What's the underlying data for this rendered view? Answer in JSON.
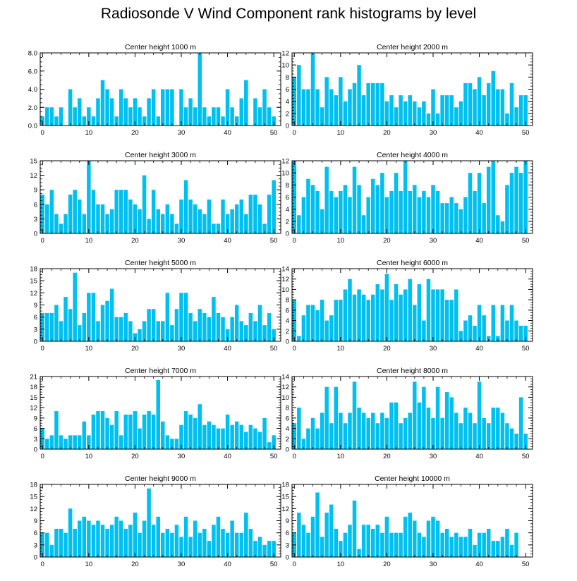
{
  "title": "Radiosonde V Wind Component rank histograms by level",
  "bar_color": "#00c0f0",
  "chart_data": [
    {
      "type": "bar",
      "title": "Center height 1000 m",
      "xlabel": "",
      "ylabel": "",
      "xlim": [
        -0.5,
        51.5
      ],
      "ylim": [
        0,
        8
      ],
      "yticks": [
        0,
        2,
        4,
        6,
        8
      ],
      "ytick_labels": [
        "0.0",
        "2.0",
        "4.0",
        "6.0",
        "8.0"
      ],
      "xticks": [
        0,
        10,
        20,
        30,
        40,
        50
      ],
      "values": [
        1,
        2,
        2,
        1,
        2,
        0,
        4,
        2,
        3,
        1,
        2,
        1,
        3,
        5,
        4,
        3,
        1,
        4,
        3,
        2,
        3,
        2,
        1,
        3,
        4,
        1,
        4,
        4,
        4,
        0,
        4,
        2,
        3,
        2,
        8,
        2,
        1,
        2,
        2,
        1,
        4,
        2,
        1,
        3,
        5,
        0,
        3,
        2,
        4,
        2,
        1
      ]
    },
    {
      "type": "bar",
      "title": "Center height 2000 m",
      "xlabel": "",
      "ylabel": "",
      "xlim": [
        -0.5,
        51.5
      ],
      "ylim": [
        0,
        12
      ],
      "yticks": [
        0,
        2,
        4,
        6,
        8,
        10,
        12
      ],
      "ytick_labels": [
        "0",
        "2",
        "4",
        "6",
        "8",
        "10",
        "12"
      ],
      "xticks": [
        0,
        10,
        20,
        30,
        40,
        50
      ],
      "values": [
        8,
        10,
        6,
        6,
        12,
        6,
        3,
        8,
        6,
        5,
        8,
        4,
        6,
        7,
        10,
        5,
        7,
        7,
        7,
        7,
        4,
        5,
        3,
        5,
        4,
        5,
        4,
        3,
        4,
        2,
        6,
        2,
        5,
        5,
        5,
        3,
        4,
        7,
        7,
        6,
        8,
        5,
        7,
        9,
        6,
        6,
        2,
        7,
        3,
        5,
        5
      ]
    },
    {
      "type": "bar",
      "title": "Center height 3000 m",
      "xlabel": "",
      "ylabel": "",
      "xlim": [
        -0.5,
        51.5
      ],
      "ylim": [
        0,
        15
      ],
      "yticks": [
        0,
        3,
        6,
        9,
        12,
        15
      ],
      "ytick_labels": [
        "0",
        "3",
        "6",
        "9",
        "12",
        "15"
      ],
      "xticks": [
        0,
        10,
        20,
        30,
        40,
        50
      ],
      "values": [
        8,
        6,
        9,
        4,
        2,
        4,
        8,
        9,
        7,
        4,
        15,
        9,
        6,
        6,
        4,
        5,
        9,
        9,
        9,
        7,
        6,
        5,
        12,
        3,
        9,
        5,
        4,
        6,
        4,
        2,
        7,
        11,
        7,
        6,
        5,
        4,
        7,
        2,
        2,
        7,
        4,
        5,
        6,
        7,
        4,
        8,
        8,
        6,
        2,
        8,
        11
      ]
    },
    {
      "type": "bar",
      "title": "Center height 4000 m",
      "xlabel": "",
      "ylabel": "",
      "xlim": [
        -0.5,
        51.5
      ],
      "ylim": [
        0,
        12
      ],
      "yticks": [
        0,
        2,
        4,
        6,
        8,
        10,
        12
      ],
      "ytick_labels": [
        "0",
        "2",
        "4",
        "6",
        "8",
        "10",
        "12"
      ],
      "xticks": [
        0,
        10,
        20,
        30,
        40,
        50
      ],
      "values": [
        12,
        3,
        6,
        9,
        8,
        7,
        4,
        11,
        7,
        6,
        7,
        8,
        6,
        11,
        8,
        3,
        6,
        9,
        8,
        10,
        6,
        7,
        10,
        7,
        12,
        7,
        8,
        6,
        7,
        6,
        8,
        7,
        5,
        5,
        6,
        5,
        4,
        6,
        10,
        7,
        10,
        5,
        11,
        12,
        3,
        2,
        8,
        10,
        11,
        10,
        12
      ]
    },
    {
      "type": "bar",
      "title": "Center height 5000 m",
      "xlabel": "",
      "ylabel": "",
      "xlim": [
        -0.5,
        51.5
      ],
      "ylim": [
        0,
        18
      ],
      "yticks": [
        0,
        3,
        6,
        9,
        12,
        15,
        18
      ],
      "ytick_labels": [
        "0",
        "3",
        "6",
        "9",
        "12",
        "15",
        "18"
      ],
      "xticks": [
        0,
        10,
        20,
        30,
        40,
        50
      ],
      "values": [
        7,
        7,
        7,
        9,
        5,
        11,
        8,
        17,
        4,
        7,
        12,
        12,
        5,
        9,
        10,
        13,
        6,
        6,
        7,
        5,
        2,
        3,
        5,
        8,
        8,
        5,
        5,
        12,
        4,
        8,
        12,
        12,
        7,
        5,
        8,
        7,
        6,
        11,
        7,
        6,
        3,
        6,
        9,
        5,
        4,
        7,
        5,
        9,
        4,
        7,
        3
      ]
    },
    {
      "type": "bar",
      "title": "Center height 6000 m",
      "xlabel": "",
      "ylabel": "",
      "xlim": [
        -0.5,
        51.5
      ],
      "ylim": [
        0,
        14
      ],
      "yticks": [
        0,
        2,
        4,
        6,
        8,
        10,
        12,
        14
      ],
      "ytick_labels": [
        "0",
        "2",
        "4",
        "6",
        "8",
        "10",
        "12",
        "14"
      ],
      "xticks": [
        0,
        10,
        20,
        30,
        40,
        50
      ],
      "values": [
        8,
        1,
        5,
        7,
        7,
        6,
        8,
        4,
        5,
        8,
        8,
        10,
        12,
        9,
        10,
        9,
        8,
        9,
        11,
        10,
        13,
        8,
        11,
        9,
        10,
        12,
        7,
        11,
        4,
        12,
        10,
        10,
        10,
        8,
        8,
        10,
        2,
        4,
        5,
        3,
        7,
        5,
        1,
        7,
        1,
        7,
        4,
        7,
        4,
        3,
        3
      ]
    },
    {
      "type": "bar",
      "title": "Center height 7000 m",
      "xlabel": "",
      "ylabel": "",
      "xlim": [
        -0.5,
        51.5
      ],
      "ylim": [
        0,
        21
      ],
      "yticks": [
        0,
        3,
        6,
        9,
        12,
        15,
        18,
        21
      ],
      "ytick_labels": [
        "0",
        "3",
        "6",
        "9",
        "12",
        "15",
        "18",
        "21"
      ],
      "xticks": [
        0,
        10,
        20,
        30,
        40,
        50
      ],
      "values": [
        6,
        3,
        4,
        11,
        4,
        3,
        4,
        4,
        4,
        8,
        4,
        10,
        11,
        11,
        9,
        7,
        11,
        4,
        10,
        10,
        11,
        6,
        10,
        11,
        10,
        20,
        8,
        4,
        3,
        3,
        7,
        11,
        10,
        9,
        13,
        7,
        8,
        7,
        6,
        6,
        10,
        7,
        8,
        7,
        5,
        7,
        6,
        5,
        9,
        2,
        4
      ]
    },
    {
      "type": "bar",
      "title": "Center height 8000 m",
      "xlabel": "",
      "ylabel": "",
      "xlim": [
        -0.5,
        51.5
      ],
      "ylim": [
        0,
        14
      ],
      "yticks": [
        0,
        2,
        4,
        6,
        8,
        10,
        12,
        14
      ],
      "ytick_labels": [
        "0",
        "2",
        "4",
        "6",
        "8",
        "10",
        "12",
        "14"
      ],
      "xticks": [
        0,
        10,
        20,
        30,
        40,
        50
      ],
      "values": [
        5,
        8,
        2,
        4,
        6,
        4,
        7,
        12,
        5,
        12,
        7,
        5,
        7,
        13,
        8,
        7,
        6,
        7,
        5,
        7,
        6,
        9,
        9,
        5,
        6,
        7,
        13,
        9,
        12,
        8,
        6,
        12,
        6,
        11,
        10,
        7,
        5,
        8,
        7,
        5,
        13,
        6,
        5,
        8,
        8,
        7,
        5,
        4,
        3,
        10,
        3
      ]
    },
    {
      "type": "bar",
      "title": "Center height 9000 m",
      "xlabel": "",
      "ylabel": "",
      "xlim": [
        -0.5,
        51.5
      ],
      "ylim": [
        0,
        18
      ],
      "yticks": [
        0,
        3,
        6,
        9,
        12,
        15,
        18
      ],
      "ytick_labels": [
        "0",
        "3",
        "6",
        "9",
        "12",
        "15",
        "18"
      ],
      "xticks": [
        0,
        10,
        20,
        30,
        40,
        50
      ],
      "values": [
        6,
        6,
        3,
        7,
        7,
        6,
        12,
        7,
        9,
        10,
        9,
        8,
        9,
        8,
        7,
        8,
        10,
        9,
        7,
        8,
        11,
        6,
        9,
        17,
        8,
        10,
        6,
        7,
        6,
        8,
        5,
        10,
        5,
        9,
        6,
        7,
        4,
        8,
        10,
        7,
        6,
        9,
        6,
        6,
        11,
        7,
        4,
        5,
        3,
        4,
        4
      ]
    },
    {
      "type": "bar",
      "title": "Center height 10000 m",
      "xlabel": "",
      "ylabel": "",
      "xlim": [
        -0.5,
        51.5
      ],
      "ylim": [
        0,
        18
      ],
      "yticks": [
        0,
        3,
        6,
        9,
        12,
        15,
        18
      ],
      "ytick_labels": [
        "0",
        "3",
        "6",
        "9",
        "12",
        "15",
        "18"
      ],
      "xticks": [
        0,
        10,
        20,
        30,
        40,
        50
      ],
      "values": [
        6,
        11,
        8,
        6,
        10,
        16,
        5,
        11,
        13,
        7,
        4,
        6,
        8,
        14,
        2,
        8,
        8,
        7,
        8,
        6,
        10,
        6,
        6,
        6,
        10,
        11,
        9,
        6,
        5,
        9,
        10,
        9,
        6,
        7,
        5,
        6,
        5,
        5,
        7,
        3,
        6,
        6,
        7,
        4,
        4,
        5,
        7,
        3,
        6
      ]
    }
  ]
}
